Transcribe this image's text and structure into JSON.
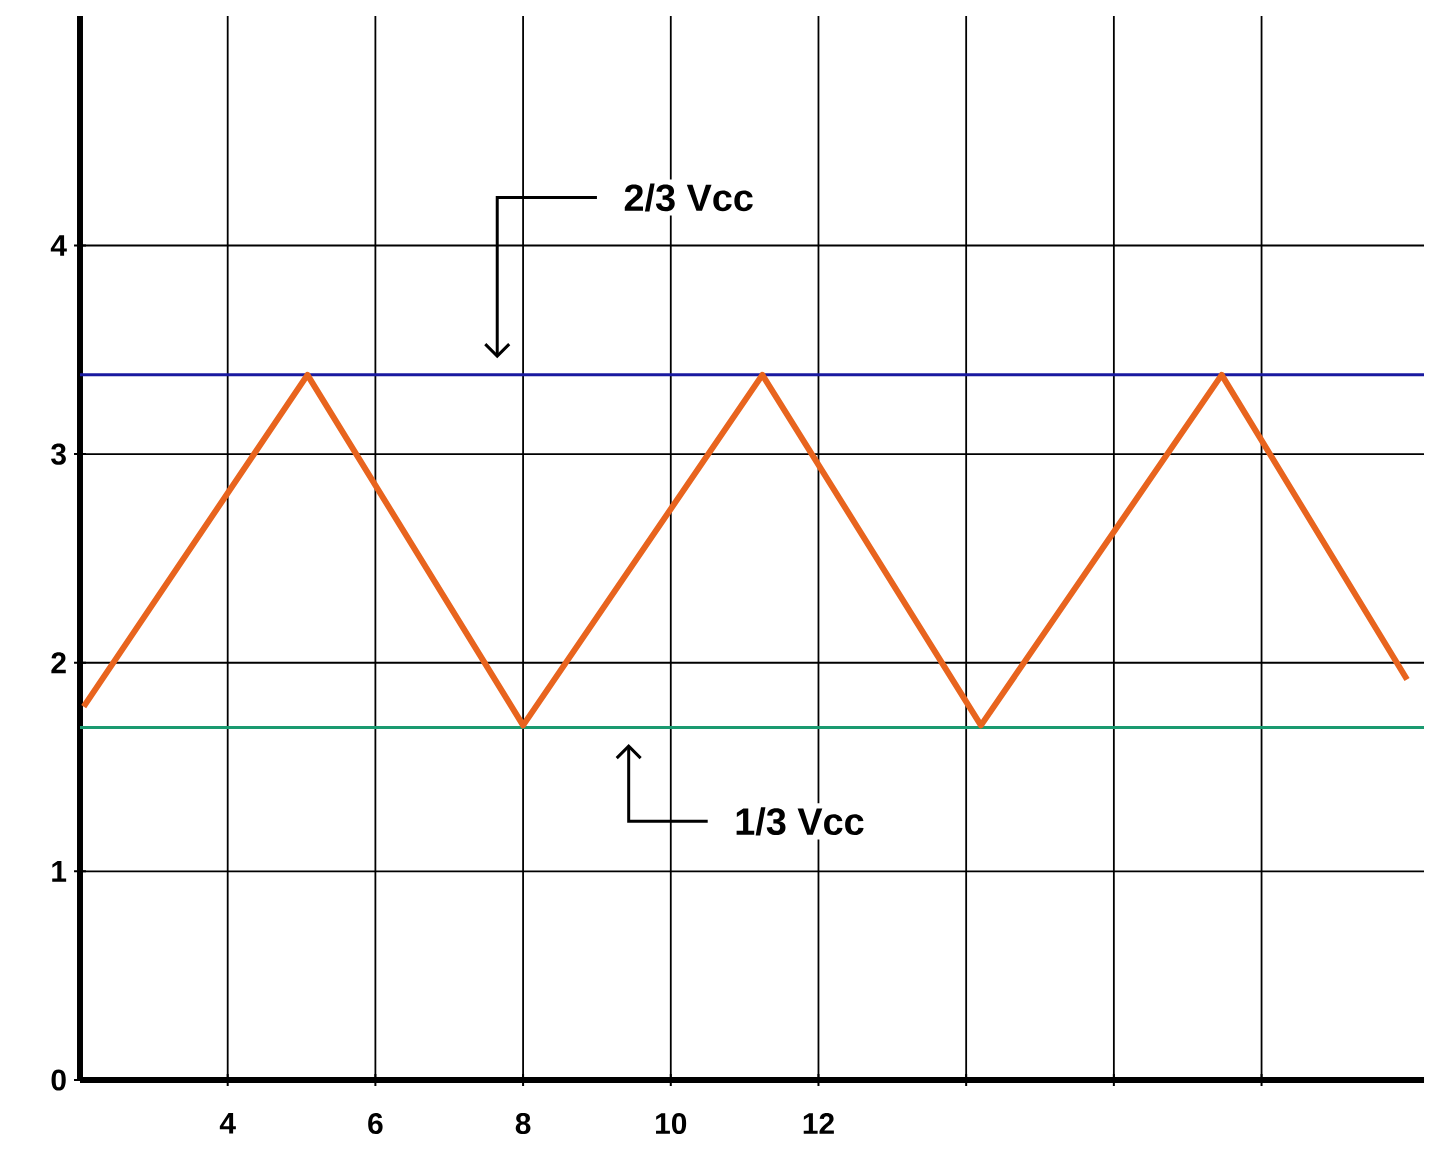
{
  "chart_data": {
    "type": "line",
    "x": [
      2.05,
      5.08,
      8.0,
      11.24,
      14.2,
      17.46,
      19.97
    ],
    "series": [
      {
        "color": "#e8641e",
        "values": [
          1.79,
          3.38,
          1.7,
          3.38,
          1.7,
          3.38,
          1.92
        ]
      }
    ],
    "xlim": [
      2,
      20.2
    ],
    "ylim": [
      0,
      5.1
    ],
    "xticks": [
      4,
      6,
      8,
      10,
      12,
      {
        "value": 14,
        "label": null
      },
      {
        "value": 16,
        "label": null
      },
      {
        "value": 18,
        "label": null
      }
    ],
    "yticks": [
      0,
      1,
      2,
      3,
      4
    ],
    "ref_lines": [
      {
        "axis": "y",
        "value": 3.38,
        "color": "#1a1aa0"
      },
      {
        "axis": "y",
        "value": 1.69,
        "color": "#1a9a70"
      }
    ],
    "annotations": [
      "2/3 Vcc",
      "1/3 Vcc"
    ],
    "grid": true,
    "marker": "none",
    "line_style": "solid"
  }
}
